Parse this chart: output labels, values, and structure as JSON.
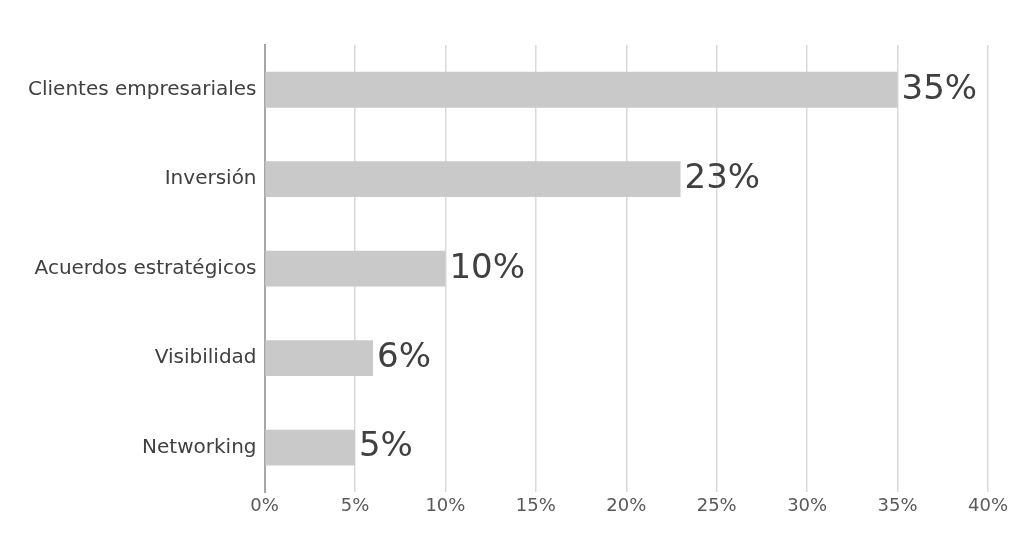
{
  "chart_data": {
    "type": "bar",
    "orientation": "horizontal",
    "categories": [
      "Clientes empresariales",
      "Inversión",
      "Acuerdos estratégicos",
      "Visibilidad",
      "Networking"
    ],
    "values": [
      35,
      23,
      10,
      6,
      5
    ],
    "value_labels": [
      "35%",
      "23%",
      "10%",
      "6%",
      "5%"
    ],
    "color": "#c9c9c9",
    "xlim": [
      0,
      40
    ],
    "xticks": [
      {
        "value": 0,
        "label": "0%"
      },
      {
        "value": 5,
        "label": "5%"
      },
      {
        "value": 10,
        "label": "10%"
      },
      {
        "value": 15,
        "label": "15%"
      },
      {
        "value": 20,
        "label": "20%"
      },
      {
        "value": 25,
        "label": "25%"
      },
      {
        "value": 30,
        "label": "30%"
      },
      {
        "value": 35,
        "label": "35%"
      },
      {
        "value": 40,
        "label": "40%"
      }
    ],
    "grid": "x",
    "legend": false
  }
}
